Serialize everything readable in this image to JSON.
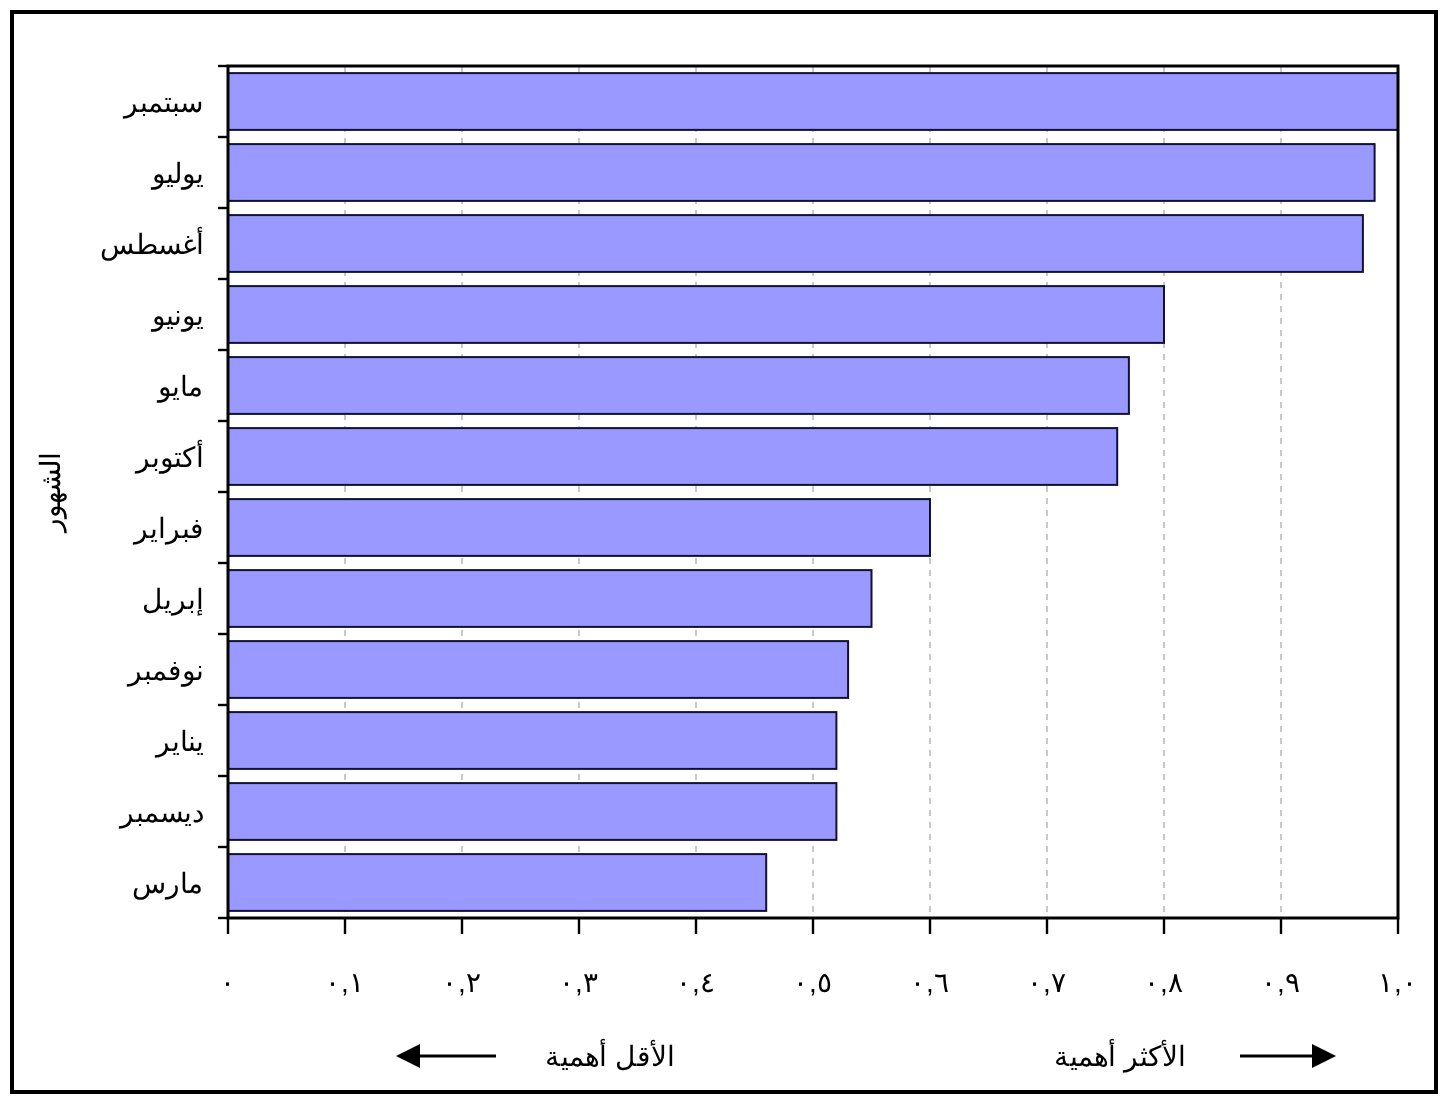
{
  "chart_data": {
    "type": "bar",
    "orientation": "horizontal",
    "ylabel": "الشهور",
    "categories": [
      "سبتمبر",
      "يوليو",
      "أغسطس",
      "يونيو",
      "مايو",
      "أكتوبر",
      "فبراير",
      "إبريل",
      "نوفمبر",
      "يناير",
      "ديسمبر",
      "مارس"
    ],
    "values": [
      1.0,
      0.98,
      0.97,
      0.8,
      0.77,
      0.76,
      0.6,
      0.55,
      0.53,
      0.52,
      0.52,
      0.46
    ],
    "color": "#9999ff",
    "xlim": [
      0,
      1
    ],
    "xticks": [
      {
        "value": 0,
        "label": "٠"
      },
      {
        "value": 0.1,
        "label": "٠,١"
      },
      {
        "value": 0.2,
        "label": "٠,٢"
      },
      {
        "value": 0.3,
        "label": "٠,٣"
      },
      {
        "value": 0.4,
        "label": "٠,٤"
      },
      {
        "value": 0.5,
        "label": "٠,٥"
      },
      {
        "value": 0.6,
        "label": "٠,٦"
      },
      {
        "value": 0.7,
        "label": "٠,٧"
      },
      {
        "value": 0.8,
        "label": "٠,٨"
      },
      {
        "value": 0.9,
        "label": "٠,٩"
      },
      {
        "value": 1.0,
        "label": "١,٠"
      }
    ],
    "grid": "x",
    "annotations": [
      "الأقل أهمية",
      "الأكثر أهمية"
    ]
  }
}
